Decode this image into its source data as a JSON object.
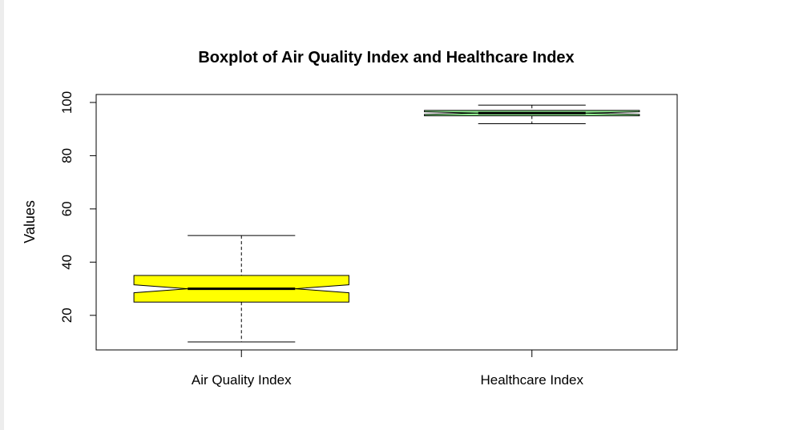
{
  "chart_data": {
    "type": "boxplot",
    "title": "Boxplot of Air Quality Index and Healthcare Index",
    "xlabel": "",
    "ylabel": "Values",
    "ylim": [
      7,
      103
    ],
    "yticks": [
      20,
      40,
      60,
      80,
      100
    ],
    "notched": true,
    "grid": false,
    "categories": [
      "Air Quality Index",
      "Healthcare Index"
    ],
    "boxes": [
      {
        "category": "Air Quality Index",
        "whisker_low": 10,
        "q1": 25,
        "median": 30,
        "q3": 35,
        "whisker_high": 50,
        "notch_low": 28.5,
        "notch_high": 31.5,
        "color": "#ffff00"
      },
      {
        "category": "Healthcare Index",
        "whisker_low": 92,
        "q1": 95,
        "median": 96,
        "q3": 97,
        "whisker_high": 99,
        "notch_low": 95.5,
        "notch_high": 96.5,
        "color": "#90ee90"
      }
    ]
  }
}
